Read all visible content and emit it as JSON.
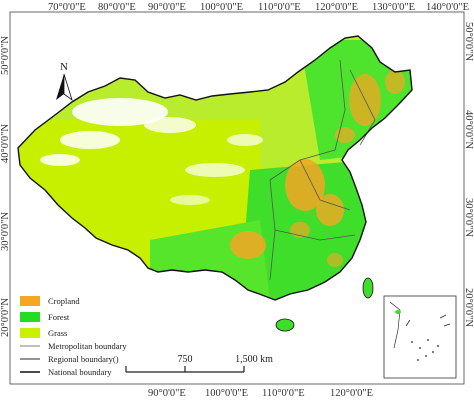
{
  "top_ticks": [
    "70°0'0\"E",
    "80°0'0\"E",
    "90°0'0\"E",
    "100°0'0\"E",
    "110°0'0\"E",
    "120°0'0\"E",
    "130°0'0\"E",
    "140°0'0\"E"
  ],
  "bottom_ticks": [
    "90°0'0\"E",
    "100°0'0\"E",
    "110°0'0\"E",
    "120°0'0\"E"
  ],
  "left_ticks": [
    "50°0'0\"N",
    "40°0'0\"N",
    "30°0'0\"N",
    "20°0'0\"N"
  ],
  "right_ticks": [
    "50°0'0\"N",
    "40°0'0\"N",
    "30°0'0\"N",
    "20°0'0\"N"
  ],
  "north_label": "N",
  "legend": {
    "items": [
      {
        "label": "Cropland",
        "color": "#f5a623"
      },
      {
        "label": "Forest",
        "color": "#22dd22"
      },
      {
        "label": "Grass",
        "color": "#c8f000"
      }
    ],
    "lines": [
      {
        "label": "Metropolitan boundary",
        "color": "#9a9a9a"
      },
      {
        "label": "Regional boundary()",
        "color": "#555555"
      },
      {
        "label": "National boundary",
        "color": "#111111"
      }
    ]
  },
  "scale": {
    "mid": "750",
    "end": "1,500 km"
  },
  "colors": {
    "cropland": "#f5a623",
    "forest": "#22dd22",
    "grass": "#c8f000",
    "mixed": "#8fe03a",
    "bare": "#ffffff"
  }
}
